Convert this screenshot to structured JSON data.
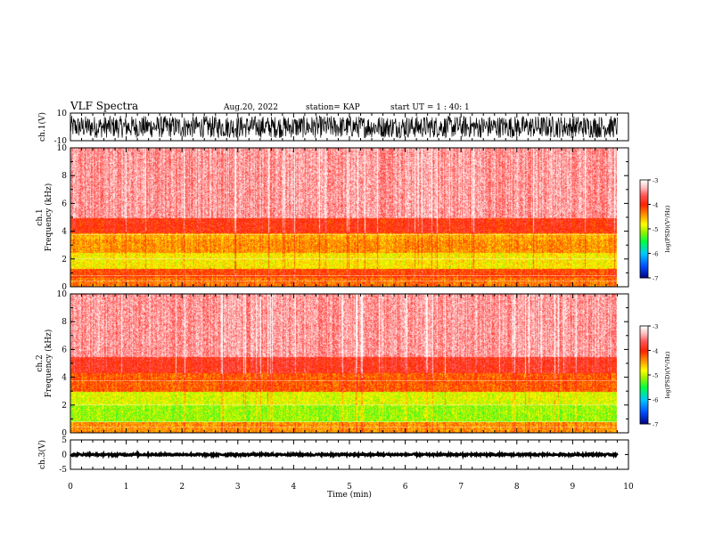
{
  "header": {
    "title": "VLF Spectra",
    "date": "Aug.20, 2022",
    "station": "station= KAP",
    "start": "start UT =  1 : 40: 1"
  },
  "colors": {
    "waveform": "#000000",
    "colormap": [
      "#000080",
      "#0050ff",
      "#00c8ff",
      "#00ff40",
      "#a0f000",
      "#ffff00",
      "#ff9000",
      "#ff2000",
      "#ffffff"
    ]
  },
  "chart_data": [
    {
      "type": "line",
      "name": "ch1-waveform",
      "ylabel": "ch.1(V)",
      "ylim": [
        -10,
        10
      ],
      "yticks": [
        "10",
        "-10"
      ],
      "xlim": [
        0,
        10
      ],
      "values_description_free": true,
      "amplitude_range": [
        -8,
        8
      ],
      "data_end_min": 9.8
    },
    {
      "type": "heatmap",
      "name": "ch1-spectrogram",
      "ylabel": "ch.1\nFrequency (kHz)",
      "ylim": [
        0,
        10
      ],
      "yticks": [
        "0",
        "2",
        "4",
        "6",
        "8",
        "10"
      ],
      "xlim": [
        0,
        10
      ],
      "data_end_min": 9.8,
      "colorbar": {
        "label": "log(PSD)(V²/Hz)",
        "range": [
          -7,
          -3
        ],
        "ticks": [
          "-3",
          "-4",
          "-5",
          "-6",
          "-7"
        ]
      },
      "bands": [
        {
          "f_range": [
            0,
            0.7
          ],
          "level": -4.3
        },
        {
          "f_range": [
            0.7,
            1.3
          ],
          "level": -4.1
        },
        {
          "f_range": [
            1.3,
            2.5
          ],
          "level": -4.75
        },
        {
          "f_range": [
            2.5,
            3.4
          ],
          "level": -4.4
        },
        {
          "f_range": [
            3.4,
            3.9
          ],
          "level": -4.5
        },
        {
          "f_range": [
            3.9,
            5.0
          ],
          "level": -3.95
        },
        {
          "f_range": [
            5.0,
            10.0
          ],
          "level": -3.4
        }
      ]
    },
    {
      "type": "heatmap",
      "name": "ch2-spectrogram",
      "ylabel": "ch.2\nFrequency (kHz)",
      "ylim": [
        0,
        10
      ],
      "yticks": [
        "0",
        "2",
        "4",
        "6",
        "8",
        "10"
      ],
      "xlim": [
        0,
        10
      ],
      "data_end_min": 9.8,
      "colorbar": {
        "label": "log(PSD)(V²/Hz)",
        "range": [
          -7,
          -3
        ],
        "ticks": [
          "-3",
          "-4",
          "-5",
          "-6",
          "-7"
        ]
      },
      "bands": [
        {
          "f_range": [
            0,
            0.8
          ],
          "level": -4.4
        },
        {
          "f_range": [
            0.8,
            2.0
          ],
          "level": -5.1
        },
        {
          "f_range": [
            2.0,
            3.0
          ],
          "level": -4.9
        },
        {
          "f_range": [
            3.0,
            4.3
          ],
          "level": -4.2
        },
        {
          "f_range": [
            4.3,
            5.5
          ],
          "level": -3.85
        },
        {
          "f_range": [
            5.5,
            10.0
          ],
          "level": -3.4
        }
      ]
    },
    {
      "type": "line",
      "name": "ch3-waveform",
      "ylabel": "ch.3(V)",
      "ylim": [
        -5,
        5
      ],
      "yticks": [
        "5",
        "0",
        "-5"
      ],
      "xlim": [
        0,
        10
      ],
      "xticks": [
        "0",
        "1",
        "2",
        "3",
        "4",
        "5",
        "6",
        "7",
        "8",
        "9",
        "10"
      ],
      "xlabel": "Time (min)",
      "amplitude_range": [
        -0.3,
        0.3
      ],
      "data_end_min": 9.8
    }
  ]
}
